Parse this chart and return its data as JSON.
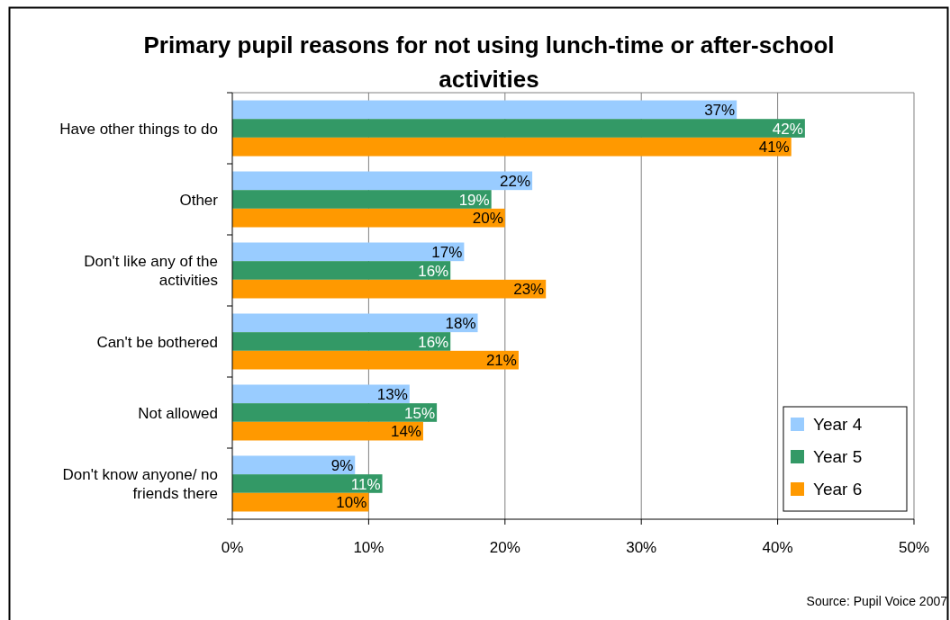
{
  "chart_data": {
    "type": "bar",
    "orientation": "horizontal",
    "title": "Primary pupil reasons for not using lunch-time or after-school activities",
    "categories": [
      "Have other things to do",
      "Other",
      "Don't like any of the activities",
      "Can't be bothered",
      "Not allowed",
      "Don't know anyone/ no friends there"
    ],
    "series": [
      {
        "name": "Year 4",
        "color": "#99ccff",
        "values": [
          37,
          22,
          17,
          18,
          13,
          9
        ],
        "value_labels": [
          "37%",
          "22%",
          "17%",
          "18%",
          "13%",
          "9%"
        ]
      },
      {
        "name": "Year 5",
        "color": "#339966",
        "values": [
          42,
          19,
          16,
          16,
          15,
          11
        ],
        "value_labels": [
          "42%",
          "19%",
          "16%",
          "16%",
          "15%",
          "11%"
        ]
      },
      {
        "name": "Year 6",
        "color": "#ff9900",
        "values": [
          41,
          20,
          23,
          21,
          14,
          10
        ],
        "value_labels": [
          "41%",
          "20%",
          "23%",
          "21%",
          "14%",
          "10%"
        ]
      }
    ],
    "xlim": [
      0,
      50
    ],
    "xticks": [
      {
        "value": 0,
        "label": "0%"
      },
      {
        "value": 10,
        "label": "10%"
      },
      {
        "value": 20,
        "label": "20%"
      },
      {
        "value": 30,
        "label": "30%"
      },
      {
        "value": 40,
        "label": "40%"
      },
      {
        "value": 50,
        "label": "50%"
      }
    ],
    "grid": "x",
    "legend": "bottom right",
    "annotations": [
      "Source: Pupil Voice 2007"
    ]
  }
}
